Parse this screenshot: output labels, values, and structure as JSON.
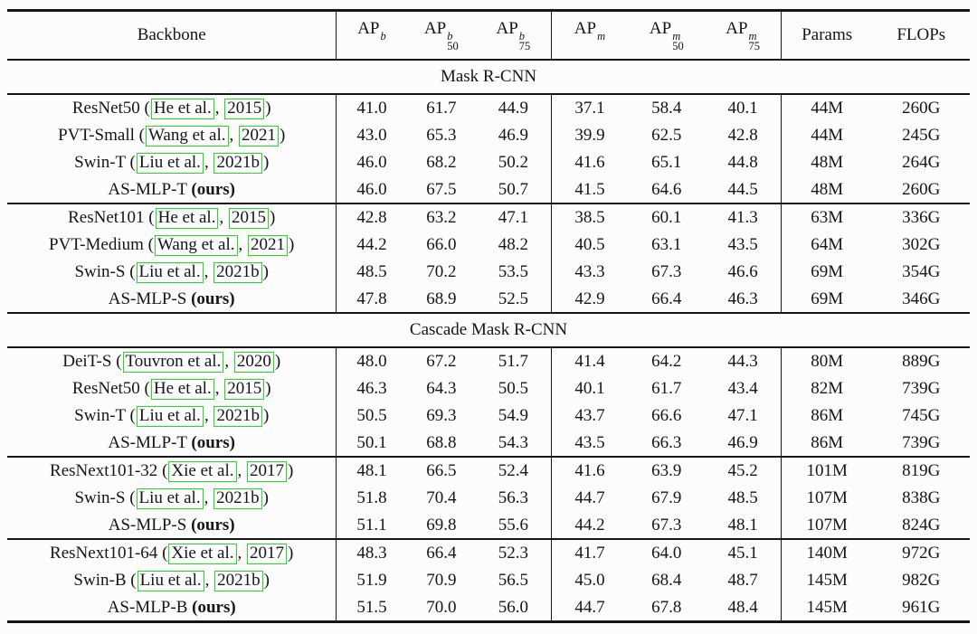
{
  "colors": {
    "link_box": "#22dd22",
    "text": "#161616",
    "rule": "#161616",
    "background": "#fcfcfc"
  },
  "table": {
    "punct": {
      "open": "(",
      "comma": ",",
      "close": ")"
    },
    "header": {
      "backbone": "Backbone",
      "metrics": [
        {
          "base": "AP",
          "sup": "b",
          "sub": ""
        },
        {
          "base": "AP",
          "sup": "b",
          "sub": "50"
        },
        {
          "base": "AP",
          "sup": "b",
          "sub": "75"
        },
        {
          "base": "AP",
          "sup": "m",
          "sub": ""
        },
        {
          "base": "AP",
          "sup": "m",
          "sub": "50"
        },
        {
          "base": "AP",
          "sup": "m",
          "sub": "75"
        }
      ],
      "params": "Params",
      "flops": "FLOPs"
    },
    "sections": [
      {
        "title": "Mask R-CNN",
        "groups": [
          {
            "rows": [
              {
                "name": "ResNet50",
                "cite": "He et al.",
                "year": "2015",
                "values": [
                  "41.0",
                  "61.7",
                  "44.9",
                  "37.1",
                  "58.4",
                  "40.1",
                  "44M",
                  "260G"
                ]
              },
              {
                "name": "PVT-Small",
                "cite": "Wang et al.",
                "year": "2021",
                "values": [
                  "43.0",
                  "65.3",
                  "46.9",
                  "39.9",
                  "62.5",
                  "42.8",
                  "44M",
                  "245G"
                ]
              },
              {
                "name": "Swin-T",
                "cite": "Liu et al.",
                "year": "2021b",
                "values": [
                  "46.0",
                  "68.2",
                  "50.2",
                  "41.6",
                  "65.1",
                  "44.8",
                  "48M",
                  "264G"
                ]
              },
              {
                "name": "AS-MLP-T",
                "ours": "(ours)",
                "values": [
                  "46.0",
                  "67.5",
                  "50.7",
                  "41.5",
                  "64.6",
                  "44.5",
                  "48M",
                  "260G"
                ]
              }
            ]
          },
          {
            "rows": [
              {
                "name": "ResNet101",
                "cite": "He et al.",
                "year": "2015",
                "values": [
                  "42.8",
                  "63.2",
                  "47.1",
                  "38.5",
                  "60.1",
                  "41.3",
                  "63M",
                  "336G"
                ]
              },
              {
                "name": "PVT-Medium",
                "cite": "Wang et al.",
                "year": "2021",
                "values": [
                  "44.2",
                  "66.0",
                  "48.2",
                  "40.5",
                  "63.1",
                  "43.5",
                  "64M",
                  "302G"
                ]
              },
              {
                "name": "Swin-S",
                "cite": "Liu et al.",
                "year": "2021b",
                "values": [
                  "48.5",
                  "70.2",
                  "53.5",
                  "43.3",
                  "67.3",
                  "46.6",
                  "69M",
                  "354G"
                ]
              },
              {
                "name": "AS-MLP-S",
                "ours": "(ours)",
                "values": [
                  "47.8",
                  "68.9",
                  "52.5",
                  "42.9",
                  "66.4",
                  "46.3",
                  "69M",
                  "346G"
                ]
              }
            ]
          }
        ]
      },
      {
        "title": "Cascade Mask R-CNN",
        "groups": [
          {
            "rows": [
              {
                "name": "DeiT-S",
                "cite": "Touvron et al.",
                "year": "2020",
                "values": [
                  "48.0",
                  "67.2",
                  "51.7",
                  "41.4",
                  "64.2",
                  "44.3",
                  "80M",
                  "889G"
                ]
              },
              {
                "name": "ResNet50",
                "cite": "He et al.",
                "year": "2015",
                "values": [
                  "46.3",
                  "64.3",
                  "50.5",
                  "40.1",
                  "61.7",
                  "43.4",
                  "82M",
                  "739G"
                ]
              },
              {
                "name": "Swin-T",
                "cite": "Liu et al.",
                "year": "2021b",
                "values": [
                  "50.5",
                  "69.3",
                  "54.9",
                  "43.7",
                  "66.6",
                  "47.1",
                  "86M",
                  "745G"
                ]
              },
              {
                "name": "AS-MLP-T",
                "ours": "(ours)",
                "values": [
                  "50.1",
                  "68.8",
                  "54.3",
                  "43.5",
                  "66.3",
                  "46.9",
                  "86M",
                  "739G"
                ]
              }
            ]
          },
          {
            "rows": [
              {
                "name": "ResNext101-32",
                "cite": "Xie et al.",
                "year": "2017",
                "values": [
                  "48.1",
                  "66.5",
                  "52.4",
                  "41.6",
                  "63.9",
                  "45.2",
                  "101M",
                  "819G"
                ]
              },
              {
                "name": "Swin-S",
                "cite": "Liu et al.",
                "year": "2021b",
                "values": [
                  "51.8",
                  "70.4",
                  "56.3",
                  "44.7",
                  "67.9",
                  "48.5",
                  "107M",
                  "838G"
                ]
              },
              {
                "name": "AS-MLP-S",
                "ours": "(ours)",
                "values": [
                  "51.1",
                  "69.8",
                  "55.6",
                  "44.2",
                  "67.3",
                  "48.1",
                  "107M",
                  "824G"
                ]
              }
            ]
          },
          {
            "rows": [
              {
                "name": "ResNext101-64",
                "cite": "Xie et al.",
                "year": "2017",
                "values": [
                  "48.3",
                  "66.4",
                  "52.3",
                  "41.7",
                  "64.0",
                  "45.1",
                  "140M",
                  "972G"
                ]
              },
              {
                "name": "Swin-B",
                "cite": "Liu et al.",
                "year": "2021b",
                "values": [
                  "51.9",
                  "70.9",
                  "56.5",
                  "45.0",
                  "68.4",
                  "48.7",
                  "145M",
                  "982G"
                ]
              },
              {
                "name": "AS-MLP-B",
                "ours": "(ours)",
                "values": [
                  "51.5",
                  "70.0",
                  "56.0",
                  "44.7",
                  "67.8",
                  "48.4",
                  "145M",
                  "961G"
                ]
              }
            ]
          }
        ]
      }
    ]
  }
}
